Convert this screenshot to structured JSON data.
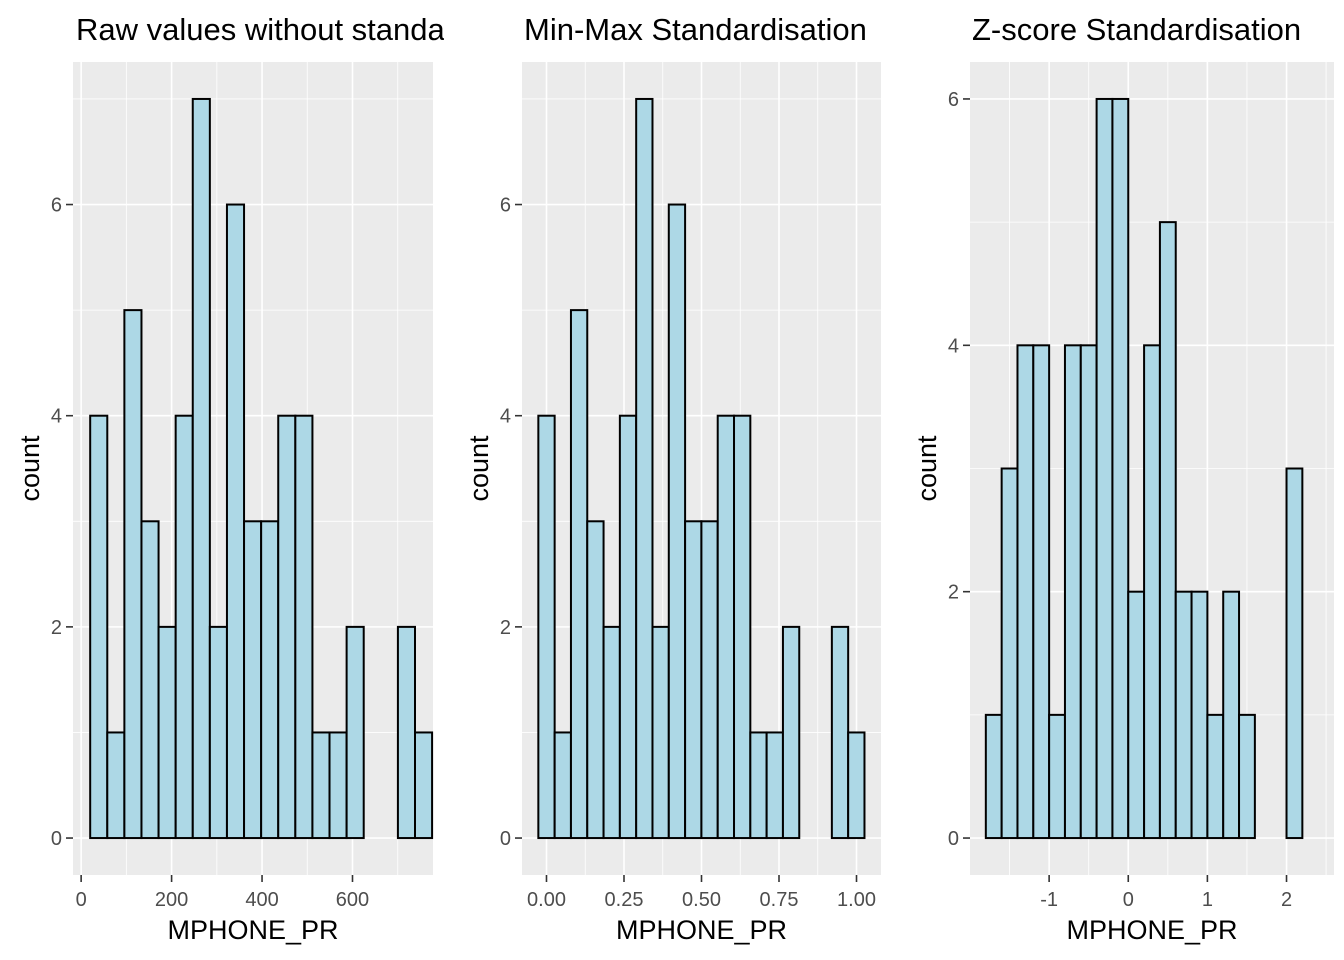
{
  "chart_data": [
    {
      "type": "bar",
      "title": "Raw values without standardisation",
      "xlabel": "MPHONE_PR",
      "ylabel": "count",
      "bin_width": 37.8,
      "x_start": 20,
      "counts": [
        4,
        1,
        5,
        3,
        2,
        4,
        7,
        2,
        6,
        3,
        3,
        4,
        4,
        1,
        1,
        2,
        0,
        0,
        2,
        1
      ],
      "xlim": [
        -18,
        778
      ],
      "ylim": [
        -0.35,
        7.35
      ],
      "x_ticks": [
        0,
        200,
        400,
        600
      ],
      "x_tick_labels": [
        "0",
        "200",
        "400",
        "600"
      ],
      "y_ticks": [
        0,
        2,
        4,
        6
      ],
      "y_tick_labels": [
        "0",
        "2",
        "4",
        "6"
      ],
      "grid": true
    },
    {
      "type": "bar",
      "title": "Min-Max Standardisation",
      "xlabel": "MPHONE_PR",
      "ylabel": "count",
      "bin_width": 0.0526,
      "x_start": -0.0263,
      "counts": [
        4,
        1,
        5,
        3,
        2,
        4,
        7,
        2,
        6,
        3,
        3,
        4,
        4,
        1,
        1,
        2,
        0,
        0,
        2,
        1
      ],
      "xlim": [
        -0.079,
        1.079
      ],
      "ylim": [
        -0.35,
        7.35
      ],
      "x_ticks": [
        0,
        0.25,
        0.5,
        0.75,
        1
      ],
      "x_tick_labels": [
        "0.00",
        "0.25",
        "0.50",
        "0.75",
        "1.00"
      ],
      "y_ticks": [
        0,
        2,
        4,
        6
      ],
      "y_tick_labels": [
        "0",
        "2",
        "4",
        "6"
      ],
      "grid": true
    },
    {
      "type": "bar",
      "title": "Z-score Standardisation",
      "xlabel": "MPHONE_PR",
      "ylabel": "count",
      "bin_width": 0.2,
      "x_start": -1.8,
      "counts": [
        1,
        3,
        4,
        4,
        1,
        4,
        4,
        6,
        6,
        2,
        4,
        5,
        2,
        2,
        1,
        2,
        1,
        0,
        0,
        3
      ],
      "xlim": [
        -2.0,
        2.6
      ],
      "ylim": [
        -0.3,
        6.3
      ],
      "x_ticks": [
        -1,
        0,
        1,
        2
      ],
      "x_tick_labels": [
        "-1",
        "0",
        "1",
        "2"
      ],
      "y_ticks": [
        0,
        2,
        4,
        6
      ],
      "y_tick_labels": [
        "0",
        "2",
        "4",
        "6"
      ],
      "grid": true
    }
  ],
  "colors": {
    "panel_background": "#ebebeb",
    "bar_fill": "#add8e6",
    "bar_outline": "#000000",
    "grid": "#ffffff"
  }
}
